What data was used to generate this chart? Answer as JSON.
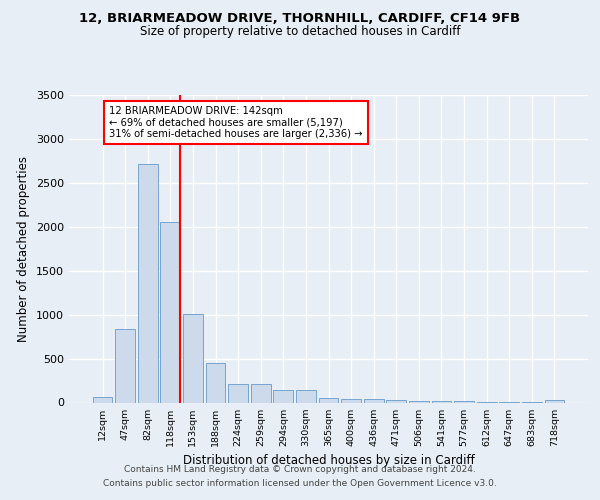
{
  "title1": "12, BRIARMEADOW DRIVE, THORNHILL, CARDIFF, CF14 9FB",
  "title2": "Size of property relative to detached houses in Cardiff",
  "xlabel": "Distribution of detached houses by size in Cardiff",
  "ylabel": "Number of detached properties",
  "bin_labels": [
    "12sqm",
    "47sqm",
    "82sqm",
    "118sqm",
    "153sqm",
    "188sqm",
    "224sqm",
    "259sqm",
    "294sqm",
    "330sqm",
    "365sqm",
    "400sqm",
    "436sqm",
    "471sqm",
    "506sqm",
    "541sqm",
    "577sqm",
    "612sqm",
    "647sqm",
    "683sqm",
    "718sqm"
  ],
  "bar_values": [
    60,
    840,
    2720,
    2060,
    1010,
    450,
    215,
    215,
    145,
    145,
    55,
    45,
    35,
    25,
    20,
    20,
    15,
    10,
    10,
    5,
    25
  ],
  "bar_color": "#cddaeb",
  "bar_edge_color": "#6699cc",
  "annotation_line1": "12 BRIARMEADOW DRIVE: 142sqm",
  "annotation_line2": "← 69% of detached houses are smaller (5,197)",
  "annotation_line3": "31% of semi-detached houses are larger (2,336) →",
  "annotation_box_color": "white",
  "annotation_box_edge": "red",
  "vline_color": "red",
  "vline_x": 3.42,
  "ylim": [
    0,
    3500
  ],
  "yticks": [
    0,
    500,
    1000,
    1500,
    2000,
    2500,
    3000,
    3500
  ],
  "footnote1": "Contains HM Land Registry data © Crown copyright and database right 2024.",
  "footnote2": "Contains public sector information licensed under the Open Government Licence v3.0.",
  "bg_color": "#e8eef5",
  "plot_bg_color": "#e8eef5",
  "grid_color": "white"
}
